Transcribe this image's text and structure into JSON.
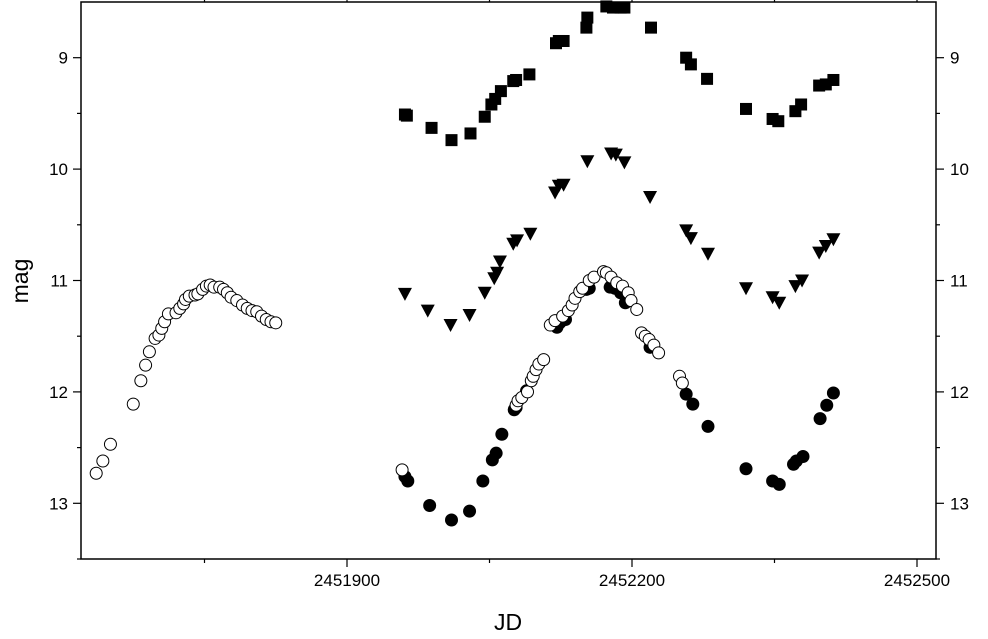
{
  "chart_data": {
    "type": "scatter",
    "xlabel": "JD",
    "ylabel": "mag",
    "xlim": [
      2451620,
      2452520
    ],
    "ylim": [
      13.5,
      8.5
    ],
    "y_inverted": true,
    "grid": false,
    "legend": "none",
    "x_ticks": [
      2451900,
      2452200,
      2452500
    ],
    "x_tick_labels": [
      "2451900",
      "2452200",
      "2452500"
    ],
    "y_ticks": [
      9,
      10,
      11,
      12,
      13
    ],
    "y_tick_labels": [
      "9",
      "10",
      "11",
      "12",
      "13"
    ],
    "series": [
      {
        "marker": "square-filled",
        "color": "#000000",
        "points": [
          [
            2451961,
            9.51
          ],
          [
            2451963,
            9.52
          ],
          [
            2451989,
            9.63
          ],
          [
            2452010,
            9.74
          ],
          [
            2452030,
            9.68
          ],
          [
            2452045,
            9.53
          ],
          [
            2452052,
            9.42
          ],
          [
            2452056,
            9.37
          ],
          [
            2452062,
            9.3
          ],
          [
            2452075,
            9.21
          ],
          [
            2452078,
            9.2
          ],
          [
            2452092,
            9.15
          ],
          [
            2452120,
            8.87
          ],
          [
            2452123,
            8.85
          ],
          [
            2452128,
            8.85
          ],
          [
            2452152,
            8.73
          ],
          [
            2452153,
            8.64
          ],
          [
            2452173,
            8.54
          ],
          [
            2452180,
            8.55
          ],
          [
            2452188,
            8.55
          ],
          [
            2452192,
            8.55
          ],
          [
            2452220,
            8.73
          ],
          [
            2452257,
            9.0
          ],
          [
            2452262,
            9.06
          ],
          [
            2452279,
            9.19
          ],
          [
            2452320,
            9.46
          ],
          [
            2452348,
            9.55
          ],
          [
            2452354,
            9.57
          ],
          [
            2452372,
            9.48
          ],
          [
            2452378,
            9.42
          ],
          [
            2452397,
            9.25
          ],
          [
            2452404,
            9.24
          ],
          [
            2452412,
            9.2
          ]
        ]
      },
      {
        "marker": "triangle-down-filled",
        "color": "#000000",
        "points": [
          [
            2451961,
            11.12
          ],
          [
            2451985,
            11.27
          ],
          [
            2452009,
            11.4
          ],
          [
            2452029,
            11.31
          ],
          [
            2452045,
            11.11
          ],
          [
            2452055,
            10.98
          ],
          [
            2452058,
            10.93
          ],
          [
            2452061,
            10.83
          ],
          [
            2452075,
            10.67
          ],
          [
            2452079,
            10.64
          ],
          [
            2452093,
            10.58
          ],
          [
            2452119,
            10.21
          ],
          [
            2452123,
            10.15
          ],
          [
            2452128,
            10.14
          ],
          [
            2452153,
            9.93
          ],
          [
            2452178,
            9.86
          ],
          [
            2452183,
            9.87
          ],
          [
            2452192,
            9.94
          ],
          [
            2452219,
            10.25
          ],
          [
            2452257,
            10.55
          ],
          [
            2452262,
            10.62
          ],
          [
            2452280,
            10.76
          ],
          [
            2452320,
            11.07
          ],
          [
            2452348,
            11.15
          ],
          [
            2452355,
            11.2
          ],
          [
            2452372,
            11.05
          ],
          [
            2452379,
            11.0
          ],
          [
            2452397,
            10.75
          ],
          [
            2452404,
            10.69
          ],
          [
            2452412,
            10.63
          ]
        ]
      },
      {
        "marker": "circle-filled",
        "color": "#000000",
        "points": [
          [
            2451961,
            12.76
          ],
          [
            2451964,
            12.8
          ],
          [
            2451987,
            13.02
          ],
          [
            2452010,
            13.15
          ],
          [
            2452029,
            13.07
          ],
          [
            2452043,
            12.8
          ],
          [
            2452053,
            12.61
          ],
          [
            2452057,
            12.55
          ],
          [
            2452063,
            12.38
          ],
          [
            2452076,
            12.16
          ],
          [
            2452078,
            12.14
          ],
          [
            2452089,
            11.99
          ],
          [
            2452121,
            11.42
          ],
          [
            2452124,
            11.38
          ],
          [
            2452130,
            11.35
          ],
          [
            2452152,
            11.08
          ],
          [
            2452155,
            11.07
          ],
          [
            2452177,
            11.06
          ],
          [
            2452182,
            11.07
          ],
          [
            2452188,
            11.11
          ],
          [
            2452193,
            11.2
          ],
          [
            2452219,
            11.6
          ],
          [
            2452257,
            12.02
          ],
          [
            2452264,
            12.11
          ],
          [
            2452280,
            12.31
          ],
          [
            2452320,
            12.69
          ],
          [
            2452348,
            12.8
          ],
          [
            2452355,
            12.83
          ],
          [
            2452370,
            12.65
          ],
          [
            2452373,
            12.62
          ],
          [
            2452380,
            12.58
          ],
          [
            2452398,
            12.24
          ],
          [
            2452405,
            12.12
          ],
          [
            2452412,
            12.01
          ]
        ]
      },
      {
        "marker": "circle-open",
        "color": "#000000",
        "points": [
          [
            2451636,
            12.73
          ],
          [
            2451643,
            12.62
          ],
          [
            2451651,
            12.47
          ],
          [
            2451675,
            12.11
          ],
          [
            2451683,
            11.9
          ],
          [
            2451688,
            11.76
          ],
          [
            2451692,
            11.64
          ],
          [
            2451698,
            11.52
          ],
          [
            2451702,
            11.49
          ],
          [
            2451705,
            11.43
          ],
          [
            2451708,
            11.37
          ],
          [
            2451712,
            11.3
          ],
          [
            2451720,
            11.29
          ],
          [
            2451724,
            11.25
          ],
          [
            2451728,
            11.21
          ],
          [
            2451730,
            11.17
          ],
          [
            2451734,
            11.14
          ],
          [
            2451740,
            11.13
          ],
          [
            2451743,
            11.12
          ],
          [
            2451748,
            11.08
          ],
          [
            2451752,
            11.05
          ],
          [
            2451756,
            11.04
          ],
          [
            2451760,
            11.06
          ],
          [
            2451766,
            11.06
          ],
          [
            2451770,
            11.08
          ],
          [
            2451774,
            11.11
          ],
          [
            2451778,
            11.15
          ],
          [
            2451784,
            11.18
          ],
          [
            2451790,
            11.22
          ],
          [
            2451795,
            11.25
          ],
          [
            2451800,
            11.27
          ],
          [
            2451805,
            11.28
          ],
          [
            2451810,
            11.32
          ],
          [
            2451815,
            11.35
          ],
          [
            2451820,
            11.37
          ],
          [
            2451825,
            11.38
          ],
          [
            2451958,
            12.7
          ],
          [
            2452078,
            12.12
          ],
          [
            2452080,
            12.08
          ],
          [
            2452084,
            12.05
          ],
          [
            2452090,
            12.0
          ],
          [
            2452094,
            11.9
          ],
          [
            2452096,
            11.86
          ],
          [
            2452099,
            11.8
          ],
          [
            2452102,
            11.75
          ],
          [
            2452107,
            11.71
          ],
          [
            2452114,
            11.4
          ],
          [
            2452119,
            11.36
          ],
          [
            2452127,
            11.32
          ],
          [
            2452133,
            11.27
          ],
          [
            2452137,
            11.22
          ],
          [
            2452140,
            11.16
          ],
          [
            2452145,
            11.1
          ],
          [
            2452148,
            11.07
          ],
          [
            2452155,
            11.0
          ],
          [
            2452160,
            10.97
          ],
          [
            2452170,
            10.92
          ],
          [
            2452173,
            10.93
          ],
          [
            2452178,
            10.97
          ],
          [
            2452184,
            11.02
          ],
          [
            2452190,
            11.05
          ],
          [
            2452196,
            11.11
          ],
          [
            2452199,
            11.18
          ],
          [
            2452205,
            11.26
          ],
          [
            2452210,
            11.47
          ],
          [
            2452214,
            11.5
          ],
          [
            2452218,
            11.53
          ],
          [
            2452223,
            11.58
          ],
          [
            2452228,
            11.65
          ],
          [
            2452250,
            11.86
          ],
          [
            2452253,
            11.92
          ]
        ]
      }
    ]
  }
}
